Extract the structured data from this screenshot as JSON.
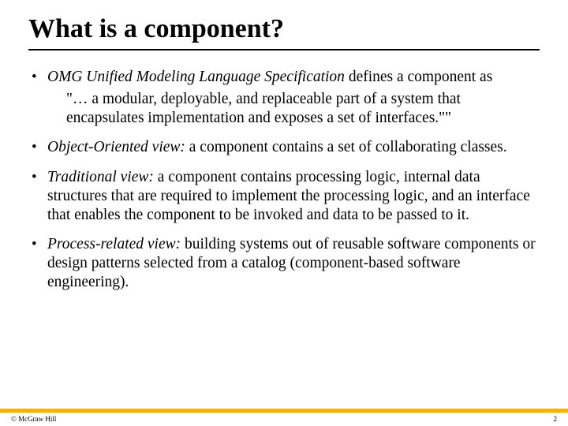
{
  "title": "What is a component?",
  "bullets": {
    "b1_lead": "OMG Unified Modeling Language Specification",
    "b1_tail": " defines a component as",
    "b1_quote": "\"… a modular, deployable, and replaceable part of a system that encapsulates implementation and exposes a set of interfaces.\"\"",
    "b2_lead": "Object-Oriented view:",
    "b2_tail": " a component contains a set of collaborating classes.",
    "b3_lead": "Traditional view:",
    "b3_tail": " a component contains processing logic, internal data structures that are required to implement the processing logic, and an interface that enables the component to be invoked and data to be passed to it.",
    "b4_lead": "Process-related view:",
    "b4_tail": " building systems out of reusable software components or design patterns selected from a catalog (component-based software engineering)."
  },
  "footer": {
    "copyright": "© McGraw Hill",
    "page": "2"
  },
  "colors": {
    "accent": "#f2b30e",
    "text": "#000000",
    "background": "#ffffff"
  }
}
